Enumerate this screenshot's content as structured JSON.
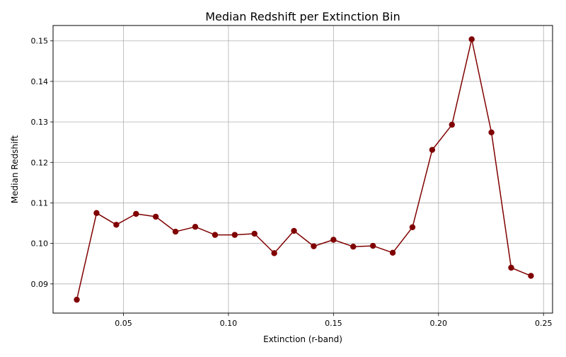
{
  "chart_data": {
    "type": "line",
    "title": "Median Redshift per Extinction Bin",
    "xlabel": "Extinction (r-band)",
    "ylabel": "Median Redshift",
    "xlim": [
      0.0165,
      0.2543
    ],
    "ylim": [
      0.0828,
      0.1538
    ],
    "xticks": [
      0.05,
      0.1,
      0.15,
      0.2,
      0.25
    ],
    "xtick_labels": [
      "0.05",
      "0.10",
      "0.15",
      "0.20",
      "0.25"
    ],
    "yticks": [
      0.09,
      0.1,
      0.11,
      0.12,
      0.13,
      0.14,
      0.15
    ],
    "ytick_labels": [
      "0.09",
      "0.10",
      "0.11",
      "0.12",
      "0.13",
      "0.14",
      "0.15"
    ],
    "grid": true,
    "color": "#800000",
    "series": [
      {
        "x": [
          0.0278,
          0.0372,
          0.0466,
          0.056,
          0.0654,
          0.0748,
          0.0842,
          0.0936,
          0.103,
          0.1124,
          0.1218,
          0.1312,
          0.1406,
          0.15,
          0.1594,
          0.1688,
          0.1782,
          0.1876,
          0.197,
          0.2064,
          0.2158,
          0.2252,
          0.2346,
          0.244
        ],
        "values": [
          0.0861,
          0.1075,
          0.1046,
          0.1073,
          0.1066,
          0.1029,
          0.1041,
          0.1021,
          0.1021,
          0.1024,
          0.0976,
          0.1031,
          0.0993,
          0.1009,
          0.0992,
          0.0994,
          0.0977,
          0.104,
          0.1231,
          0.1293,
          0.1504,
          0.1274,
          0.094,
          0.092
        ]
      }
    ]
  }
}
